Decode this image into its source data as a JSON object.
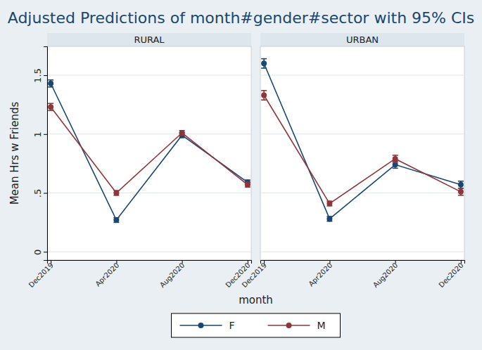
{
  "chart_data": {
    "type": "line",
    "title": "Adjusted Predictions of month#gender#sector with 95% CIs",
    "x_label": "month",
    "y_label": "Mean Hrs w Friends",
    "categories": [
      "Dec2019",
      "Apr2020",
      "Aug2020",
      "Dec2020"
    ],
    "ylim": [
      -0.07,
      1.745
    ],
    "yticks": [
      0,
      {
        "value": 0.5,
        "label": ".5"
      },
      1,
      1.5
    ],
    "grid": true,
    "legend": "bottom",
    "marker": "circle",
    "panels": [
      {
        "title": "RURAL",
        "series": [
          {
            "name": "F",
            "color": "#1a476f",
            "values": [
              1.43,
              0.27,
              0.99,
              0.59
            ],
            "errors": [
              0.03,
              0.02,
              0.02,
              0.02
            ]
          },
          {
            "name": "M",
            "color": "#90353b",
            "values": [
              1.23,
              0.5,
              1.01,
              0.57
            ],
            "errors": [
              0.03,
              0.02,
              0.02,
              0.02
            ]
          }
        ]
      },
      {
        "title": "URBAN",
        "series": [
          {
            "name": "F",
            "color": "#1a476f",
            "values": [
              1.6,
              0.28,
              0.74,
              0.57
            ],
            "errors": [
              0.04,
              0.02,
              0.03,
              0.03
            ]
          },
          {
            "name": "M",
            "color": "#90353b",
            "values": [
              1.33,
              0.41,
              0.79,
              0.51
            ],
            "errors": [
              0.04,
              0.02,
              0.03,
              0.03
            ]
          }
        ]
      }
    ]
  }
}
